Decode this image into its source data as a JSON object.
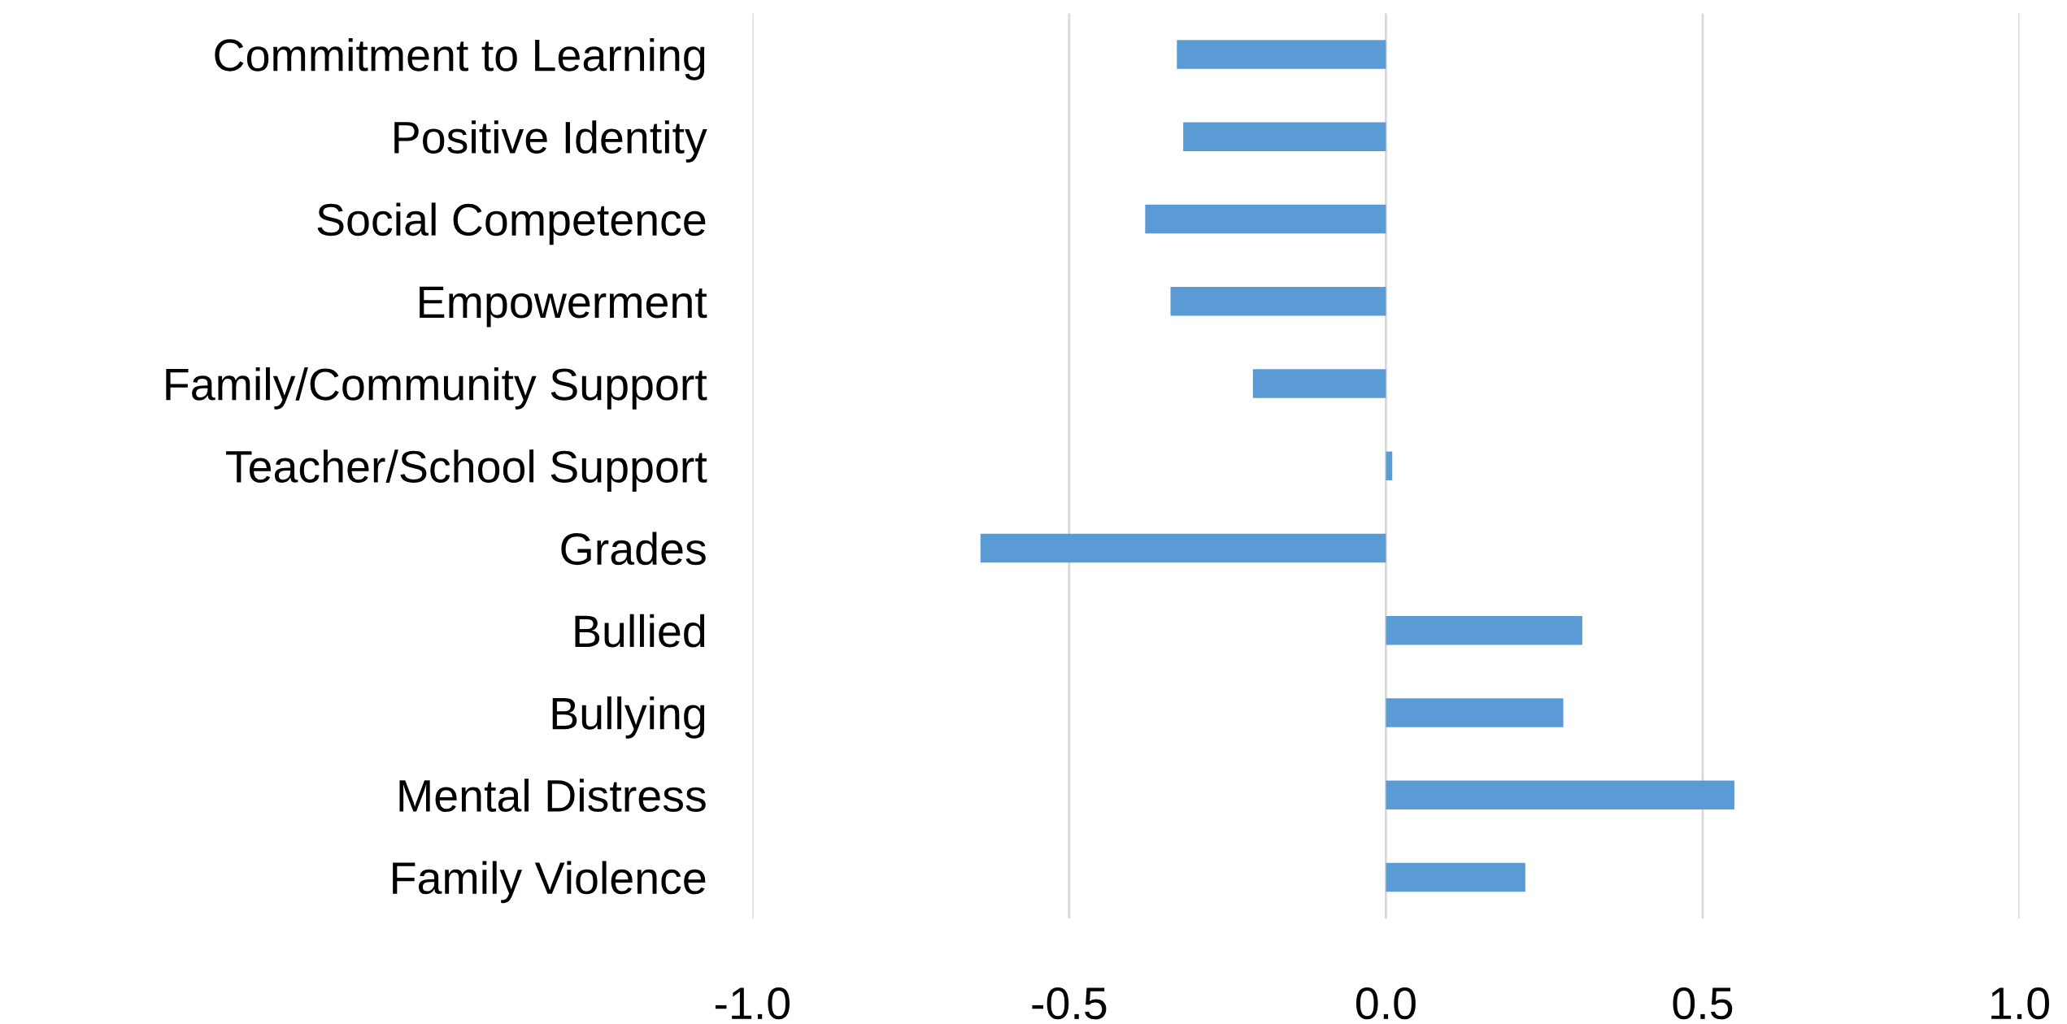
{
  "chart_data": {
    "type": "bar",
    "orientation": "horizontal",
    "categories": [
      "Commitment to Learning",
      "Positive Identity",
      "Social Competence",
      "Empowerment",
      "Family/Community Support",
      "Teacher/School Support",
      "Grades",
      "Bullied",
      "Bullying",
      "Mental Distress",
      "Family Violence"
    ],
    "values": [
      -0.33,
      -0.32,
      -0.38,
      -0.34,
      -0.21,
      0.01,
      -0.64,
      0.31,
      0.28,
      0.55,
      0.22
    ],
    "color": "#5b9bd5",
    "xlim": [
      -1.0,
      1.0
    ],
    "xticks": [
      {
        "value": -1.0,
        "label": "-1.0"
      },
      {
        "value": -0.5,
        "label": "-0.5"
      },
      {
        "value": 0.0,
        "label": "0.0"
      },
      {
        "value": 0.5,
        "label": "0.5"
      },
      {
        "value": 1.0,
        "label": "1.0"
      }
    ],
    "grid": "x",
    "legend": false
  }
}
